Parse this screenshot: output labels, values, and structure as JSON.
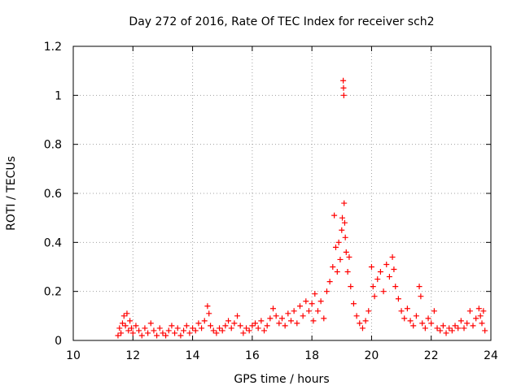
{
  "chart_data": {
    "type": "scatter",
    "title": "Day 272 of 2016, Rate Of TEC Index for receiver sch2",
    "xlabel": "GPS time / hours",
    "ylabel": "ROTI / TECUs",
    "xlim": [
      10,
      24
    ],
    "ylim": [
      0,
      1.2
    ],
    "xticks": [
      10,
      12,
      14,
      16,
      18,
      20,
      22,
      24
    ],
    "yticks": [
      0,
      0.2,
      0.4,
      0.6,
      0.8,
      1,
      1.2
    ],
    "xtick_labels": [
      "10",
      "12",
      "14",
      "16",
      "18",
      "20",
      "22",
      "24"
    ],
    "ytick_labels": [
      "0",
      "0.2",
      "0.4",
      "0.6",
      "0.8",
      "1",
      "1.2"
    ],
    "grid": true,
    "marker": "plus",
    "color": "#ff0000",
    "series": [
      {
        "name": "ROTI",
        "points": [
          [
            11.5,
            0.02
          ],
          [
            11.55,
            0.05
          ],
          [
            11.6,
            0.03
          ],
          [
            11.65,
            0.07
          ],
          [
            11.7,
            0.1
          ],
          [
            11.75,
            0.06
          ],
          [
            11.8,
            0.11
          ],
          [
            11.85,
            0.04
          ],
          [
            11.9,
            0.08
          ],
          [
            11.95,
            0.05
          ],
          [
            12.0,
            0.03
          ],
          [
            12.1,
            0.06
          ],
          [
            12.2,
            0.04
          ],
          [
            12.3,
            0.02
          ],
          [
            12.4,
            0.05
          ],
          [
            12.5,
            0.03
          ],
          [
            12.6,
            0.07
          ],
          [
            12.7,
            0.04
          ],
          [
            12.8,
            0.02
          ],
          [
            12.9,
            0.05
          ],
          [
            13.0,
            0.03
          ],
          [
            13.1,
            0.02
          ],
          [
            13.2,
            0.04
          ],
          [
            13.3,
            0.06
          ],
          [
            13.4,
            0.03
          ],
          [
            13.5,
            0.05
          ],
          [
            13.6,
            0.02
          ],
          [
            13.7,
            0.04
          ],
          [
            13.8,
            0.06
          ],
          [
            13.9,
            0.03
          ],
          [
            14.0,
            0.05
          ],
          [
            14.1,
            0.04
          ],
          [
            14.2,
            0.07
          ],
          [
            14.3,
            0.05
          ],
          [
            14.4,
            0.08
          ],
          [
            14.5,
            0.14
          ],
          [
            14.55,
            0.11
          ],
          [
            14.6,
            0.06
          ],
          [
            14.7,
            0.04
          ],
          [
            14.8,
            0.03
          ],
          [
            14.9,
            0.05
          ],
          [
            15.0,
            0.04
          ],
          [
            15.1,
            0.06
          ],
          [
            15.2,
            0.08
          ],
          [
            15.3,
            0.05
          ],
          [
            15.4,
            0.07
          ],
          [
            15.5,
            0.1
          ],
          [
            15.6,
            0.06
          ],
          [
            15.7,
            0.03
          ],
          [
            15.8,
            0.05
          ],
          [
            15.9,
            0.04
          ],
          [
            16.0,
            0.06
          ],
          [
            16.1,
            0.07
          ],
          [
            16.2,
            0.05
          ],
          [
            16.3,
            0.08
          ],
          [
            16.4,
            0.04
          ],
          [
            16.5,
            0.06
          ],
          [
            16.6,
            0.09
          ],
          [
            16.7,
            0.13
          ],
          [
            16.8,
            0.1
          ],
          [
            16.9,
            0.07
          ],
          [
            17.0,
            0.09
          ],
          [
            17.1,
            0.06
          ],
          [
            17.2,
            0.11
          ],
          [
            17.3,
            0.08
          ],
          [
            17.4,
            0.12
          ],
          [
            17.5,
            0.07
          ],
          [
            17.6,
            0.14
          ],
          [
            17.7,
            0.1
          ],
          [
            17.8,
            0.16
          ],
          [
            17.9,
            0.12
          ],
          [
            18.0,
            0.15
          ],
          [
            18.05,
            0.08
          ],
          [
            18.1,
            0.19
          ],
          [
            18.2,
            0.12
          ],
          [
            18.3,
            0.16
          ],
          [
            18.4,
            0.09
          ],
          [
            18.5,
            0.2
          ],
          [
            18.6,
            0.24
          ],
          [
            18.7,
            0.3
          ],
          [
            18.75,
            0.51
          ],
          [
            18.8,
            0.38
          ],
          [
            18.85,
            0.28
          ],
          [
            18.9,
            0.4
          ],
          [
            18.95,
            0.33
          ],
          [
            19.0,
            0.45
          ],
          [
            19.02,
            0.5
          ],
          [
            19.05,
            1.06
          ],
          [
            19.06,
            1.03
          ],
          [
            19.07,
            1.0
          ],
          [
            19.08,
            0.56
          ],
          [
            19.1,
            0.48
          ],
          [
            19.12,
            0.42
          ],
          [
            19.15,
            0.36
          ],
          [
            19.2,
            0.28
          ],
          [
            19.25,
            0.34
          ],
          [
            19.3,
            0.22
          ],
          [
            19.4,
            0.15
          ],
          [
            19.5,
            0.1
          ],
          [
            19.6,
            0.07
          ],
          [
            19.7,
            0.05
          ],
          [
            19.8,
            0.08
          ],
          [
            19.9,
            0.12
          ],
          [
            20.0,
            0.3
          ],
          [
            20.05,
            0.22
          ],
          [
            20.1,
            0.18
          ],
          [
            20.2,
            0.25
          ],
          [
            20.3,
            0.28
          ],
          [
            20.4,
            0.2
          ],
          [
            20.5,
            0.31
          ],
          [
            20.6,
            0.26
          ],
          [
            20.7,
            0.34
          ],
          [
            20.75,
            0.29
          ],
          [
            20.8,
            0.22
          ],
          [
            20.9,
            0.17
          ],
          [
            21.0,
            0.12
          ],
          [
            21.1,
            0.09
          ],
          [
            21.2,
            0.13
          ],
          [
            21.3,
            0.08
          ],
          [
            21.4,
            0.06
          ],
          [
            21.5,
            0.1
          ],
          [
            21.6,
            0.22
          ],
          [
            21.65,
            0.18
          ],
          [
            21.7,
            0.07
          ],
          [
            21.8,
            0.05
          ],
          [
            21.9,
            0.09
          ],
          [
            22.0,
            0.07
          ],
          [
            22.1,
            0.12
          ],
          [
            22.2,
            0.05
          ],
          [
            22.3,
            0.04
          ],
          [
            22.4,
            0.06
          ],
          [
            22.5,
            0.03
          ],
          [
            22.6,
            0.05
          ],
          [
            22.7,
            0.04
          ],
          [
            22.8,
            0.06
          ],
          [
            22.9,
            0.05
          ],
          [
            23.0,
            0.08
          ],
          [
            23.1,
            0.05
          ],
          [
            23.2,
            0.07
          ],
          [
            23.3,
            0.12
          ],
          [
            23.4,
            0.06
          ],
          [
            23.5,
            0.09
          ],
          [
            23.6,
            0.13
          ],
          [
            23.65,
            0.1
          ],
          [
            23.7,
            0.07
          ],
          [
            23.75,
            0.12
          ],
          [
            23.8,
            0.04
          ]
        ]
      }
    ]
  }
}
